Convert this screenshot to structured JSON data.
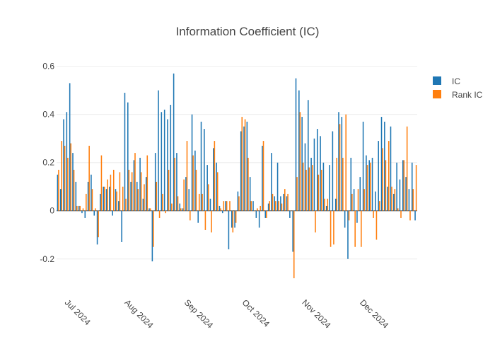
{
  "chart_data": {
    "type": "bar",
    "title": "Information Coefficient (IC)",
    "xlabel": "",
    "ylabel": "",
    "x_start": "2024-06-27",
    "x_end": "2024-12-31",
    "x_tick_labels": [
      {
        "date": "2024-07-01",
        "label": "Jul 2024"
      },
      {
        "date": "2024-08-01",
        "label": "Aug 2024"
      },
      {
        "date": "2024-09-01",
        "label": "Sep 2024"
      },
      {
        "date": "2024-10-01",
        "label": "Oct 2024"
      },
      {
        "date": "2024-11-01",
        "label": "Nov 2024"
      },
      {
        "date": "2024-12-01",
        "label": "Dec 2024"
      }
    ],
    "ylim": [
      -0.33,
      0.64
    ],
    "y_ticks": [
      -0.2,
      0,
      0.2,
      0.4,
      0.6
    ],
    "grid": true,
    "legend_position": "top-right",
    "series": [
      {
        "name": "IC",
        "color": "#1f77b4",
        "values": [
          0.15,
          0.09,
          0.38,
          0.41,
          0.53,
          0.24,
          0.12,
          0.02,
          -0.01,
          -0.03,
          0.12,
          0.15,
          -0.02,
          -0.14,
          0.07,
          0.1,
          0.09,
          0.1,
          -0.02,
          0.09,
          0.04,
          -0.13,
          0.49,
          0.45,
          0.12,
          0.21,
          0.12,
          0.22,
          0.05,
          0.14,
          0.01,
          -0.21,
          0.24,
          0.5,
          0.41,
          0.42,
          0.38,
          0.44,
          0.57,
          0.24,
          0.03,
          0.01,
          0.14,
          0.09,
          0.4,
          0.25,
          -0.05,
          0.37,
          0.34,
          0.19,
          0.05,
          0.26,
          0.2,
          0.02,
          -0.01,
          0.04,
          -0.16,
          -0.07,
          -0.07,
          0.08,
          0.33,
          0.35,
          0.37,
          0.14,
          0.04,
          -0.03,
          -0.07,
          0.27,
          -0.03,
          0.03,
          0.24,
          0.06,
          0.2,
          0.06,
          0.07,
          0.06,
          -0.03,
          -0.17,
          0.55,
          0.5,
          0.39,
          0.28,
          0.46,
          0.22,
          0.3,
          0.34,
          0.31,
          0.2,
          0.02,
          0.19,
          0.33,
          0.05,
          0.41,
          0.39,
          -0.07,
          -0.2,
          0.22,
          0.09,
          -0.05,
          0.14,
          0.37,
          0.23,
          0.21,
          0.22,
          0.08,
          0.29,
          0.39,
          0.37,
          0.1,
          0.35,
          0.07,
          0.2,
          0.13,
          0.21,
          0.14,
          0.09,
          0.2,
          -0.04
        ]
      },
      {
        "name": "Rank IC",
        "color": "#ff7f0e",
        "values": [
          0.17,
          0.29,
          0.27,
          0.22,
          0.28,
          0.17,
          0.02,
          0.02,
          0.01,
          0.07,
          0.27,
          0.09,
          0.01,
          -0.11,
          0.23,
          0.1,
          0.13,
          0.15,
          0.17,
          0.08,
          0.16,
          0.1,
          0.05,
          0.17,
          0.16,
          0.24,
          0.09,
          0.16,
          0.11,
          0.23,
          0.01,
          -0.15,
          0.12,
          -0.03,
          0.07,
          -0.01,
          0.17,
          0.03,
          0.22,
          0.06,
          0.01,
          0.13,
          0.29,
          -0.04,
          0.23,
          0.17,
          0.07,
          0.07,
          -0.08,
          0.11,
          -0.09,
          0.29,
          0.16,
          0.01,
          0.04,
          0.04,
          0.04,
          -0.09,
          -0.05,
          0.06,
          0.39,
          0.38,
          0.22,
          0.04,
          0.0,
          0.01,
          0.02,
          0.29,
          -0.03,
          0.04,
          0.07,
          0.04,
          0.04,
          0.03,
          0.09,
          0.07,
          0.0,
          -0.28,
          0.14,
          0.41,
          0.2,
          0.17,
          0.18,
          0.19,
          -0.09,
          0.15,
          0.17,
          0.05,
          0.05,
          -0.15,
          -0.14,
          0.22,
          0.36,
          0.22,
          0.4,
          -0.04,
          0.07,
          -0.15,
          0.09,
          -0.15,
          0.09,
          0.19,
          0.2,
          -0.03,
          -0.12,
          0.04,
          0.26,
          0.21,
          0.29,
          0.1,
          0.09,
          0.01,
          -0.03,
          0.21,
          0.35,
          -0.04,
          0.09,
          0.19
        ]
      }
    ]
  }
}
